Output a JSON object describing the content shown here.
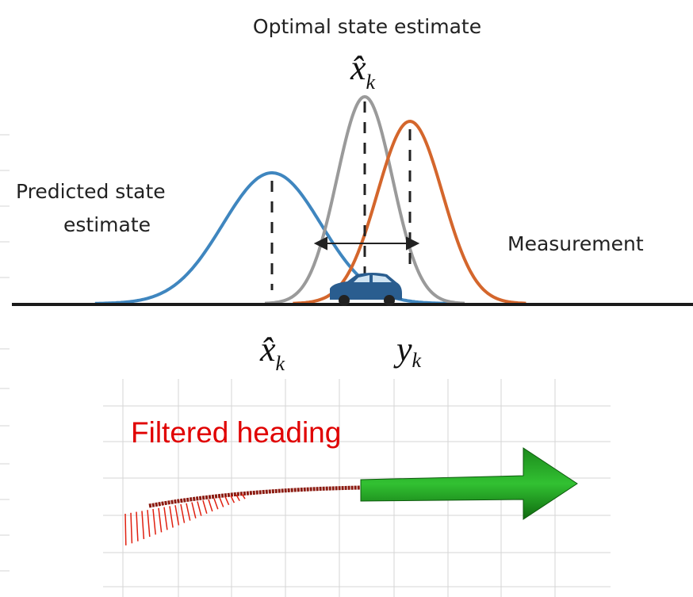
{
  "title": "Optimal state estimate",
  "optimal_label": {
    "base": "x̂",
    "sub": "k"
  },
  "predicted_label": [
    "Predicted state",
    "estimate"
  ],
  "measurement_label": "Measurement",
  "axis_labels": [
    {
      "base": "x̂",
      "sub": "k"
    },
    {
      "base": "y",
      "sub": "k"
    }
  ],
  "heading_label": "Filtered heading"
}
